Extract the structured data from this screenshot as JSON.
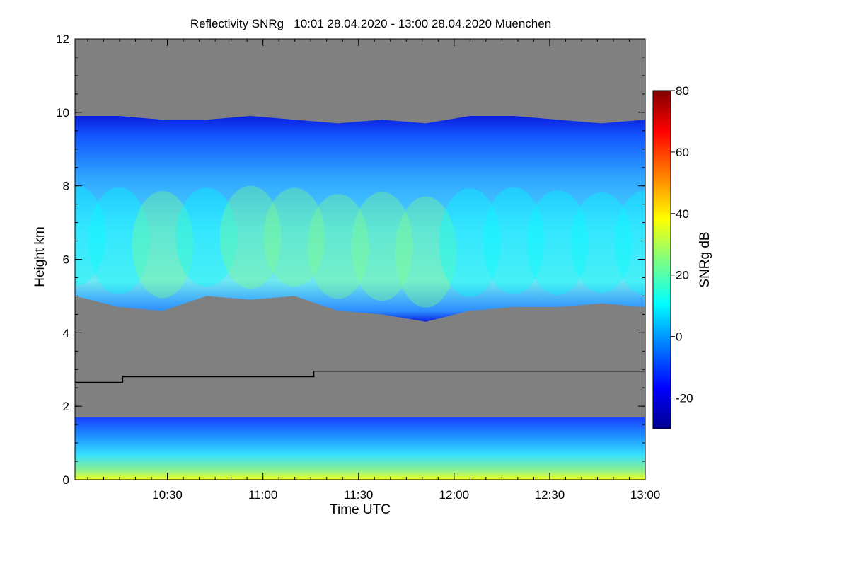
{
  "chart_data": {
    "type": "heatmap",
    "title": "Reflectivity SNRg   10:01 28.04.2020 - 13:00 28.04.2020 Muenchen",
    "xlabel": "Time UTC",
    "ylabel": "Height km",
    "xlim": [
      "10:01",
      "13:00"
    ],
    "ylim": [
      0,
      12
    ],
    "x_ticks": [
      "10:30",
      "11:00",
      "11:30",
      "12:00",
      "12:30",
      "13:00"
    ],
    "y_ticks": [
      "0",
      "2",
      "4",
      "6",
      "8",
      "10",
      "12"
    ],
    "colorbar": {
      "label": "SNRg dB",
      "range": [
        -30,
        80
      ],
      "ticks": [
        "-20",
        "0",
        "20",
        "40",
        "60",
        "80"
      ],
      "colors": [
        "#00008f",
        "#0000ff",
        "#0080ff",
        "#00ffff",
        "#80ff80",
        "#ffff00",
        "#ff8000",
        "#ff0000",
        "#800000"
      ]
    },
    "background_color": "#808080",
    "series": [
      {
        "description_levels": "upper cloud layer",
        "base_km": [
          5.0,
          4.7,
          4.6,
          5.0,
          4.9,
          5.0,
          4.6,
          4.5,
          4.3,
          4.6,
          4.7,
          4.7,
          4.8,
          4.7
        ],
        "top_km": [
          9.9,
          9.9,
          9.8,
          9.8,
          9.9,
          9.8,
          9.7,
          9.8,
          9.7,
          9.9,
          9.9,
          9.8,
          9.7,
          9.8
        ],
        "peak_snr_db": [
          12,
          18,
          20,
          18,
          22,
          26,
          28,
          30,
          24,
          16,
          14,
          14,
          12,
          10
        ]
      }
    ],
    "boundary_line_km": [
      {
        "time": "10:01",
        "height": 2.65
      },
      {
        "time": "10:16",
        "height": 2.65
      },
      {
        "time": "10:16",
        "height": 2.8
      },
      {
        "time": "11:16",
        "height": 2.8
      },
      {
        "time": "11:16",
        "height": 2.95
      },
      {
        "time": "13:00",
        "height": 2.95
      }
    ]
  }
}
